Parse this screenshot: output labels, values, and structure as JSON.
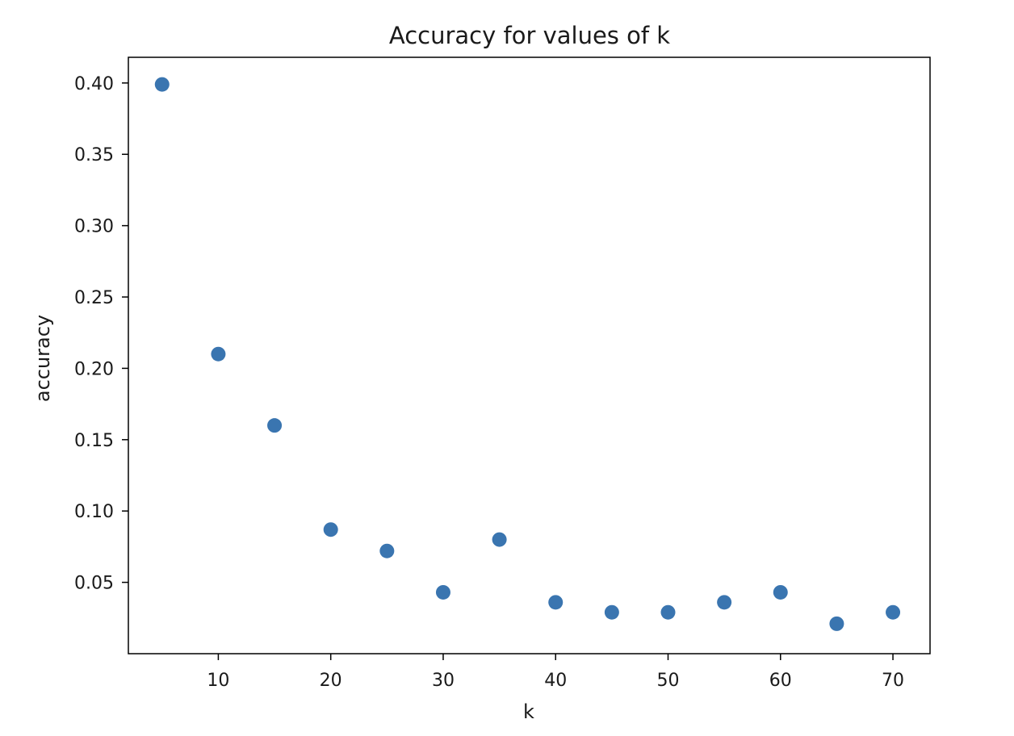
{
  "chart_data": {
    "type": "scatter",
    "title": "Accuracy for values of k",
    "xlabel": "k",
    "ylabel": "accuracy",
    "xlim": [
      2,
      73.3
    ],
    "ylim": [
      0.0,
      0.418
    ],
    "xticks": [
      10,
      20,
      30,
      40,
      50,
      60,
      70
    ],
    "xtick_labels": [
      "10",
      "20",
      "30",
      "40",
      "50",
      "60",
      "70"
    ],
    "yticks": [
      0.05,
      0.1,
      0.15,
      0.2,
      0.25,
      0.3,
      0.35,
      0.4
    ],
    "ytick_labels": [
      "0.05",
      "0.10",
      "0.15",
      "0.20",
      "0.25",
      "0.30",
      "0.35",
      "0.40"
    ],
    "grid": false,
    "marker_color": "#3a75b0",
    "x": [
      5,
      10,
      15,
      20,
      25,
      30,
      35,
      40,
      45,
      50,
      55,
      60,
      65,
      70
    ],
    "y": [
      0.399,
      0.21,
      0.16,
      0.087,
      0.072,
      0.043,
      0.08,
      0.036,
      0.029,
      0.029,
      0.036,
      0.043,
      0.021,
      0.029
    ]
  }
}
